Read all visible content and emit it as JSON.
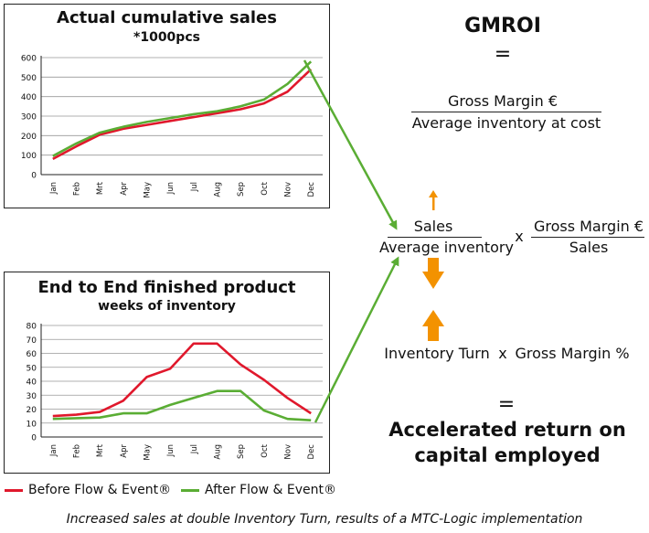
{
  "chart_data": [
    {
      "type": "line",
      "title": "Actual cumulative sales",
      "subtitle": "*1000pcs",
      "categories": [
        "Jan",
        "Feb",
        "Mrt",
        "Apr",
        "May",
        "Jun",
        "Jul",
        "Aug",
        "Sep",
        "Oct",
        "Nov",
        "Dec"
      ],
      "ylim": [
        0,
        600
      ],
      "yticks": [
        0,
        100,
        200,
        300,
        400,
        500,
        600
      ],
      "grid": true,
      "series": [
        {
          "name": "Before Flow & Event®",
          "color": "#e0182c",
          "values": [
            80,
            145,
            205,
            235,
            255,
            275,
            295,
            315,
            335,
            365,
            425,
            540
          ]
        },
        {
          "name": "After Flow & Event®",
          "color": "#5aad34",
          "values": [
            95,
            160,
            215,
            245,
            270,
            290,
            310,
            325,
            350,
            385,
            465,
            580
          ]
        }
      ]
    },
    {
      "type": "line",
      "title": "End to End finished product",
      "subtitle": "weeks of inventory",
      "categories": [
        "Jan",
        "Feb",
        "Mrt",
        "Apr",
        "May",
        "Jun",
        "Jul",
        "Aug",
        "Sep",
        "Oct",
        "Nov",
        "Dec"
      ],
      "ylim": [
        0,
        80
      ],
      "yticks": [
        0,
        10,
        20,
        30,
        40,
        50,
        60,
        70,
        80
      ],
      "grid": true,
      "series": [
        {
          "name": "Before Flow & Event®",
          "color": "#e0182c",
          "values": [
            15,
            16,
            18,
            26,
            43,
            49,
            67,
            67,
            52,
            41,
            28,
            17
          ]
        },
        {
          "name": "After Flow & Event®",
          "color": "#5aad34",
          "values": [
            13,
            13.5,
            14,
            17,
            17,
            23,
            28,
            33,
            33,
            19,
            13,
            12
          ]
        }
      ]
    }
  ],
  "legend": {
    "items": [
      {
        "label": "Before Flow & Event®",
        "color": "#e0182c"
      },
      {
        "label": "After Flow & Event®",
        "color": "#5aad34"
      }
    ]
  },
  "formula": {
    "title": "GMROI",
    "equals_1": "=",
    "numerator_1": "Gross Margin €",
    "denominator_1": "Average inventory at cost",
    "sales_numerator": "Sales",
    "sales_denominator": "Average inventory",
    "times_1": "x",
    "gm_numerator": "Gross Margin €",
    "gm_denominator": "Sales",
    "inventory_turn": "Inventory Turn",
    "times_2": "x",
    "gross_margin_pct": "Gross Margin %",
    "equals_2": "=",
    "result_line1": "Accelerated return on",
    "result_line2": "capital employed"
  },
  "colors": {
    "arrow_orange": "#f39200",
    "arrow_green": "#5aad34"
  },
  "caption": "Increased sales at double Inventory Turn, results of a MTC-Logic implementation"
}
